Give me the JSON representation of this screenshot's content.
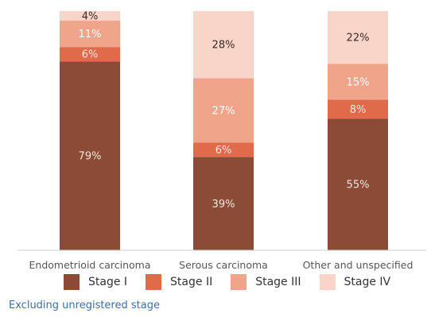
{
  "chart_data": {
    "type": "bar",
    "stacked": true,
    "categories": [
      "Endometrioid carcinoma",
      "Serous carcinoma",
      "Other and unspecified"
    ],
    "series": [
      {
        "name": "Stage I",
        "values": [
          79,
          39,
          55
        ],
        "labels": [
          "79%",
          "39%",
          "55%"
        ],
        "color": "#8c4b36",
        "text_color": "#f5e6df"
      },
      {
        "name": "Stage II",
        "values": [
          6,
          6,
          8
        ],
        "labels": [
          "6%",
          "6%",
          "8%"
        ],
        "color": "#df6b4b",
        "text_color": "#fbe9e2"
      },
      {
        "name": "Stage III",
        "values": [
          11,
          27,
          15
        ],
        "labels": [
          "11%",
          "27%",
          "15%"
        ],
        "color": "#f0a48a",
        "text_color": "#ffffff"
      },
      {
        "name": "Stage IV",
        "values": [
          4,
          28,
          22
        ],
        "labels": [
          "4%",
          "28%",
          "22%"
        ],
        "color": "#f9d5c9",
        "text_color": "#3a2a24"
      }
    ],
    "ylim": [
      0,
      100
    ],
    "grid": false,
    "legend_position": "bottom"
  },
  "note": "Excluding unregistered stage"
}
